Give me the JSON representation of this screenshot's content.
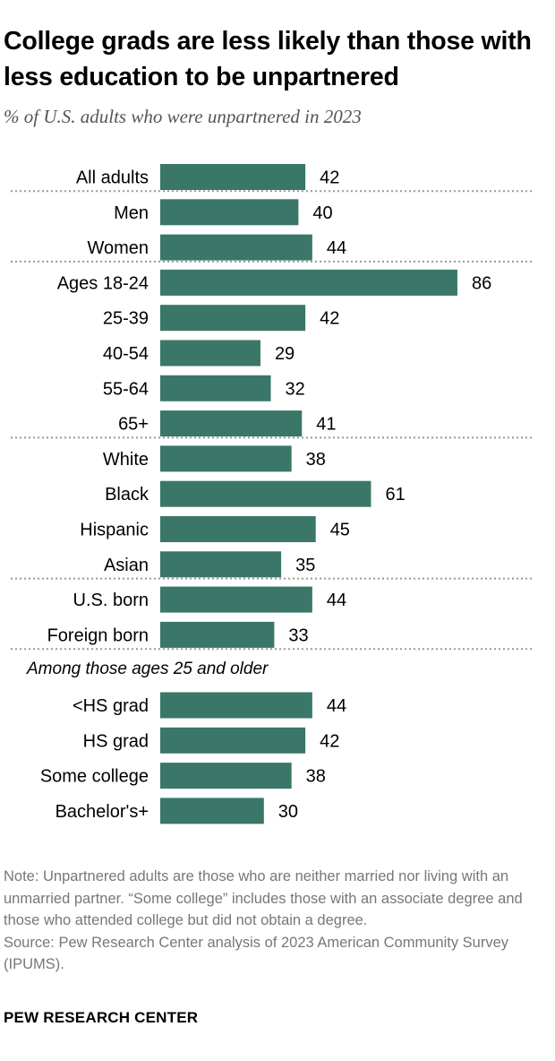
{
  "header": {
    "title": "College grads are less likely than those with less education to be unpartnered",
    "subtitle": "% of U.S. adults who were unpartnered in 2023"
  },
  "footer": {
    "note": "Note: Unpartnered adults are those who are neither married nor living with an unmarried partner. “Some college” includes those with an associate degree and those who attended college but did not obtain a degree.",
    "source": "Source: Pew Research Center analysis of 2023 American Community Survey (IPUMS).",
    "brand": "PEW RESEARCH CENTER"
  },
  "colors": {
    "bar": "#3a7768",
    "divider": "#999999"
  },
  "chart_data": {
    "type": "bar",
    "orientation": "horizontal",
    "title": "College grads are less likely than those with less education to be unpartnered",
    "subtitle": "% of U.S. adults who were unpartnered in 2023",
    "xlim": [
      0,
      100
    ],
    "grid": false,
    "legend": "none",
    "groups": [
      {
        "heading": "",
        "items": [
          {
            "label": "All adults",
            "value": 42
          }
        ]
      },
      {
        "heading": "",
        "items": [
          {
            "label": "Men",
            "value": 40
          },
          {
            "label": "Women",
            "value": 44
          }
        ]
      },
      {
        "heading": "",
        "items": [
          {
            "label": "Ages 18-24",
            "value": 86
          },
          {
            "label": "25-39",
            "value": 42
          },
          {
            "label": "40-54",
            "value": 29
          },
          {
            "label": "55-64",
            "value": 32
          },
          {
            "label": "65+",
            "value": 41
          }
        ]
      },
      {
        "heading": "",
        "items": [
          {
            "label": "White",
            "value": 38
          },
          {
            "label": "Black",
            "value": 61
          },
          {
            "label": "Hispanic",
            "value": 45
          },
          {
            "label": "Asian",
            "value": 35
          }
        ]
      },
      {
        "heading": "",
        "items": [
          {
            "label": "U.S. born",
            "value": 44
          },
          {
            "label": "Foreign born",
            "value": 33
          }
        ]
      },
      {
        "heading": "Among those ages 25 and older",
        "items": [
          {
            "label": "<HS grad",
            "value": 44
          },
          {
            "label": "HS grad",
            "value": 42
          },
          {
            "label": "Some college",
            "value": 38
          },
          {
            "label": "Bachelor's+",
            "value": 30
          }
        ]
      }
    ]
  }
}
